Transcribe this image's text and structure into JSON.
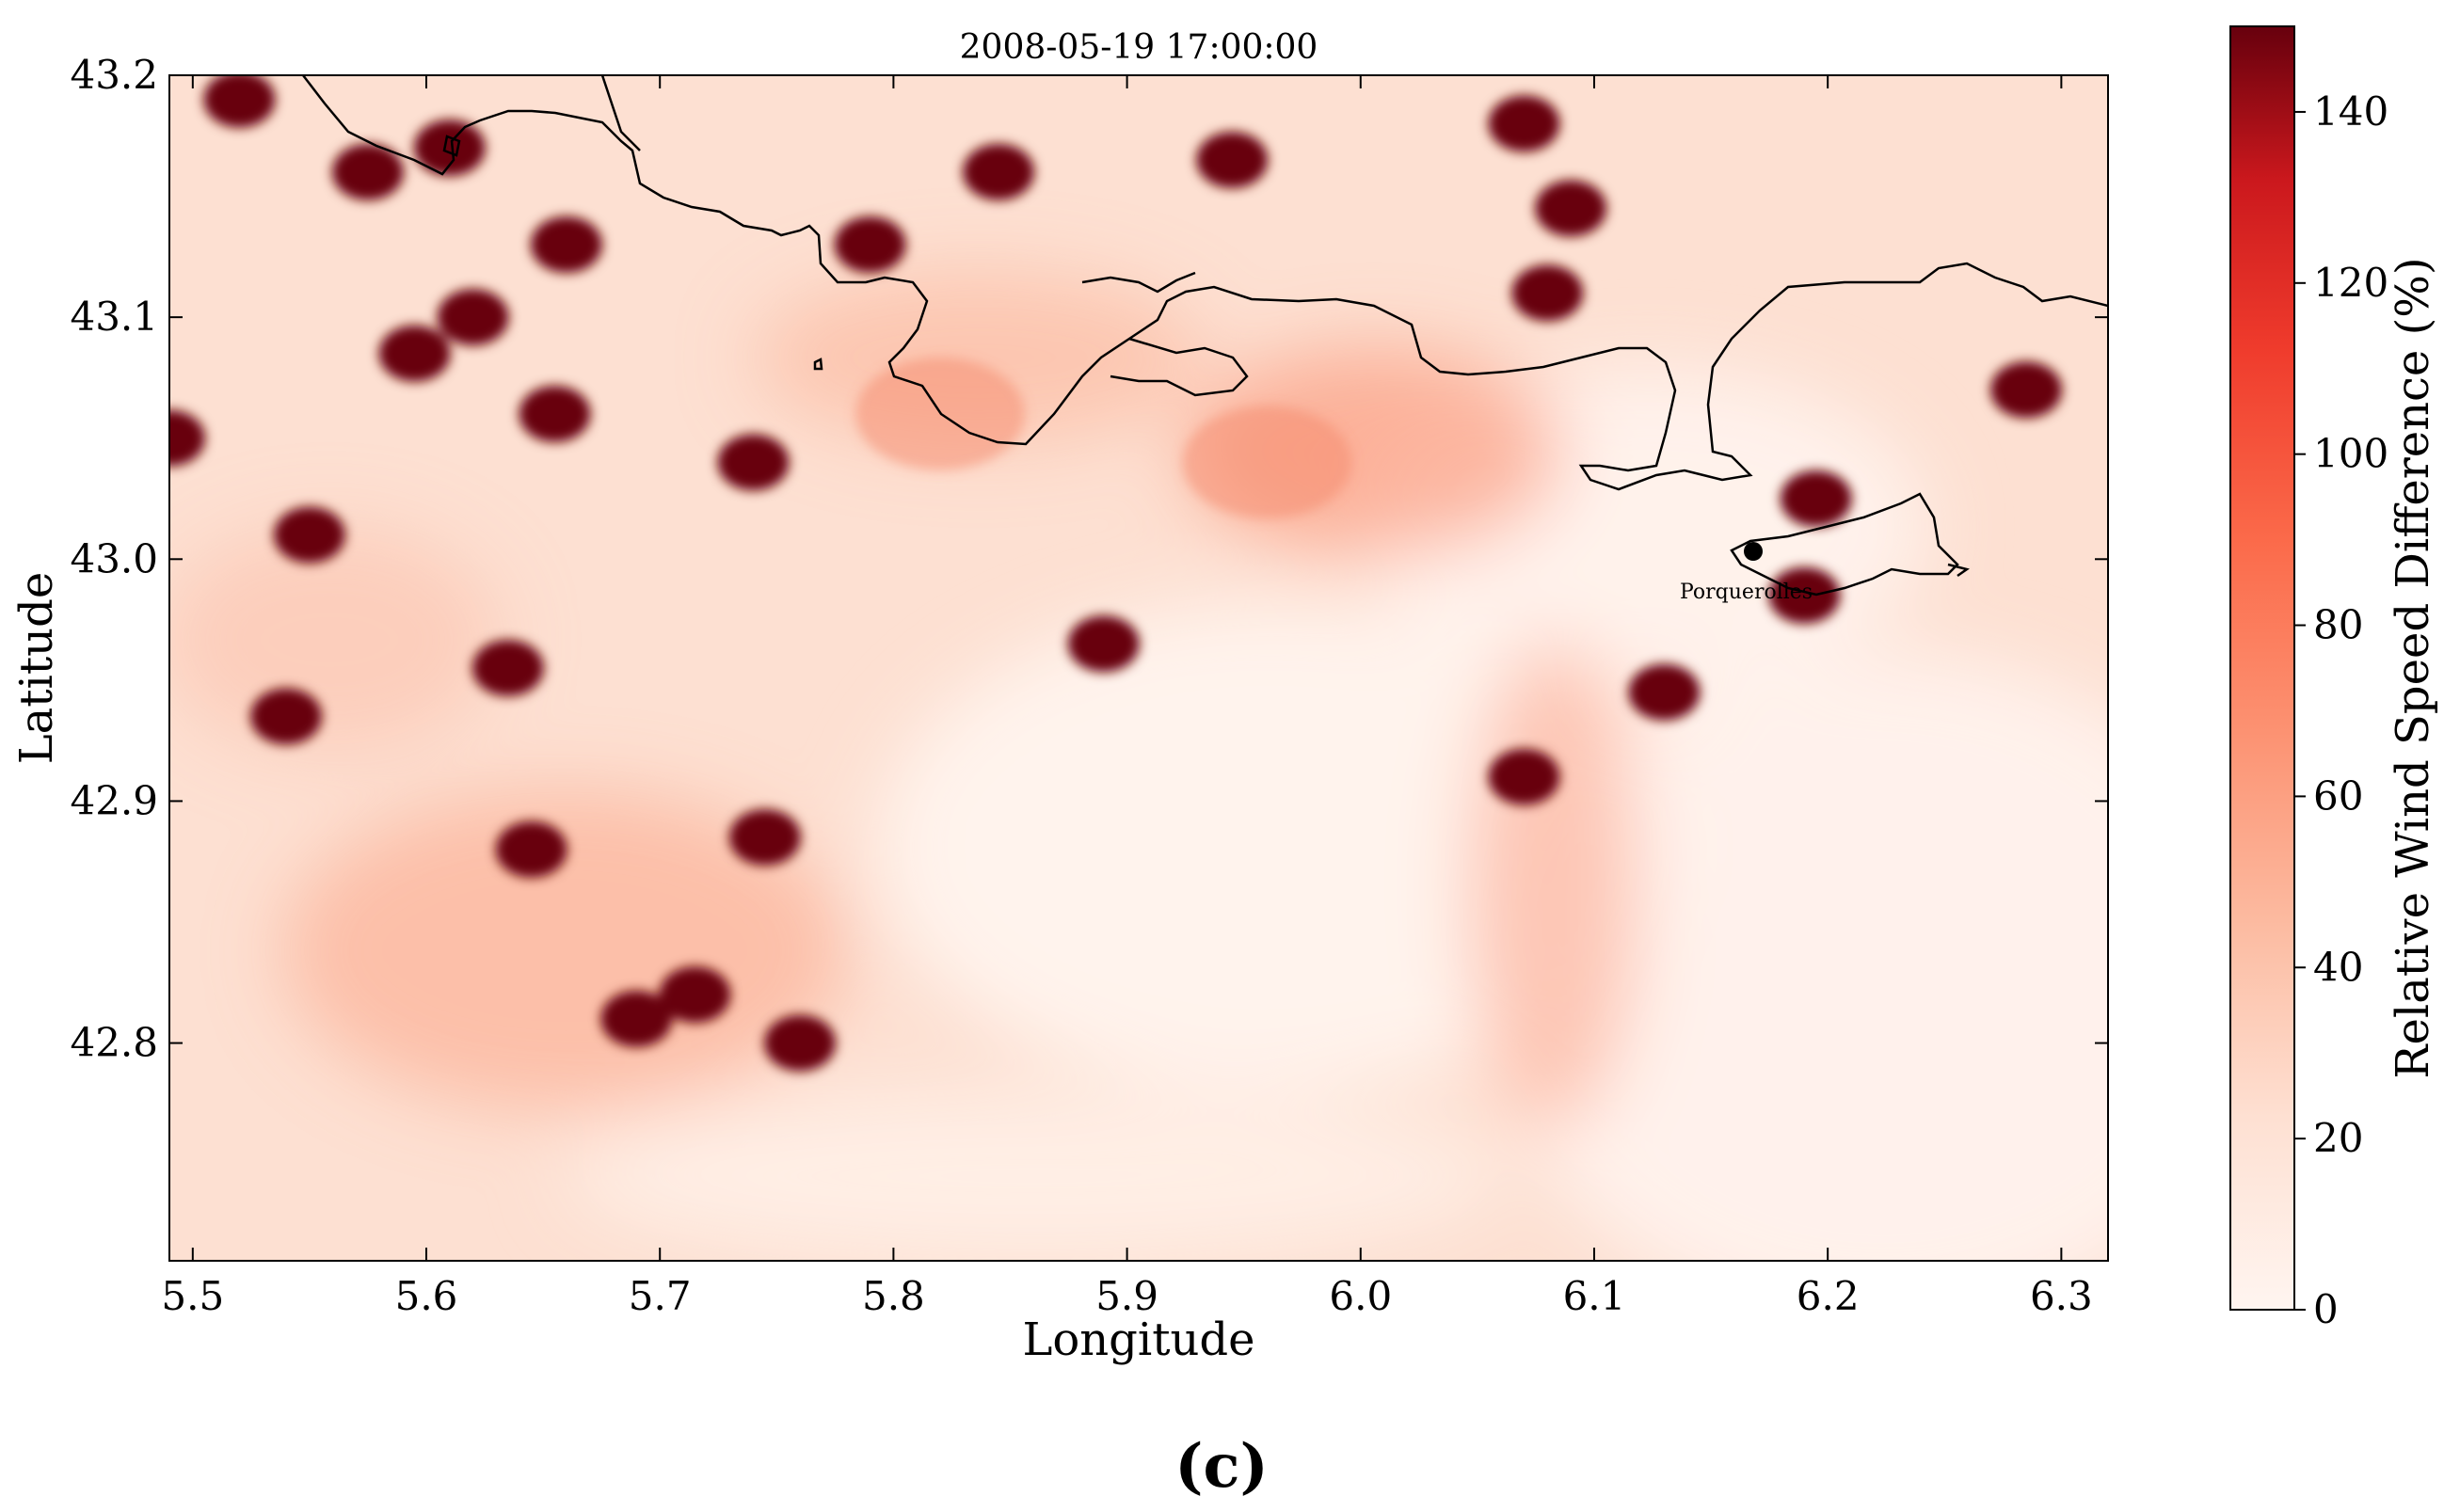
{
  "chart_data": {
    "type": "heatmap",
    "title": "2008-05-19 17:00:00",
    "xlabel": "Longitude",
    "ylabel": "Latitude",
    "xlim": [
      5.49,
      6.32
    ],
    "ylim": [
      42.71,
      43.2
    ],
    "xticks": [
      "5.5",
      "5.6",
      "5.7",
      "5.8",
      "5.9",
      "6.0",
      "6.1",
      "6.2",
      "6.3"
    ],
    "yticks": [
      "43.2",
      "43.1",
      "43.0",
      "42.9",
      "42.8"
    ],
    "colorbar": {
      "label": "Relative Wind Speed Difference (%)",
      "range": [
        0,
        150
      ],
      "ticks": [
        "0",
        "20",
        "40",
        "60",
        "80",
        "100",
        "120",
        "140"
      ],
      "colormap": "Reds",
      "colors": [
        "#fff5f0",
        "#fcbba1",
        "#fb6a4a",
        "#cb181d",
        "#67000d"
      ]
    },
    "hotspots": [
      {
        "lon": 5.845,
        "lat": 43.16,
        "value": 150
      },
      {
        "lon": 5.945,
        "lat": 43.165,
        "value": 150
      },
      {
        "lon": 5.79,
        "lat": 43.13,
        "value": 150
      },
      {
        "lon": 5.66,
        "lat": 43.13,
        "value": 150
      },
      {
        "lon": 5.62,
        "lat": 43.1,
        "value": 150
      },
      {
        "lon": 5.595,
        "lat": 43.085,
        "value": 150
      },
      {
        "lon": 5.61,
        "lat": 43.17,
        "value": 150
      },
      {
        "lon": 5.52,
        "lat": 43.19,
        "value": 150
      },
      {
        "lon": 5.575,
        "lat": 43.16,
        "value": 150
      },
      {
        "lon": 5.49,
        "lat": 43.05,
        "value": 150
      },
      {
        "lon": 5.74,
        "lat": 43.04,
        "value": 150
      },
      {
        "lon": 5.655,
        "lat": 43.06,
        "value": 150
      },
      {
        "lon": 5.55,
        "lat": 43.01,
        "value": 150
      },
      {
        "lon": 5.54,
        "lat": 42.935,
        "value": 150
      },
      {
        "lon": 5.635,
        "lat": 42.955,
        "value": 150
      },
      {
        "lon": 5.89,
        "lat": 42.965,
        "value": 150
      },
      {
        "lon": 6.07,
        "lat": 42.91,
        "value": 150
      },
      {
        "lon": 6.13,
        "lat": 42.945,
        "value": 150
      },
      {
        "lon": 6.19,
        "lat": 42.985,
        "value": 150
      },
      {
        "lon": 6.195,
        "lat": 43.025,
        "value": 150
      },
      {
        "lon": 6.285,
        "lat": 43.07,
        "value": 150
      },
      {
        "lon": 6.07,
        "lat": 43.18,
        "value": 150
      },
      {
        "lon": 6.09,
        "lat": 43.145,
        "value": 150
      },
      {
        "lon": 6.08,
        "lat": 43.11,
        "value": 150
      },
      {
        "lon": 5.715,
        "lat": 42.82,
        "value": 150
      },
      {
        "lon": 5.69,
        "lat": 42.81,
        "value": 150
      },
      {
        "lon": 5.76,
        "lat": 42.8,
        "value": 150
      },
      {
        "lon": 5.645,
        "lat": 42.88,
        "value": 150
      },
      {
        "lon": 5.745,
        "lat": 42.885,
        "value": 150
      },
      {
        "lon": 5.96,
        "lat": 43.04,
        "value": 70
      },
      {
        "lon": 5.82,
        "lat": 43.06,
        "value": 60
      }
    ],
    "annotations": [
      "Porquerolles"
    ]
  },
  "caption": "(c)",
  "colors": {
    "low": "#fff5f0",
    "high": "#67000d",
    "coastline": "#000000"
  }
}
